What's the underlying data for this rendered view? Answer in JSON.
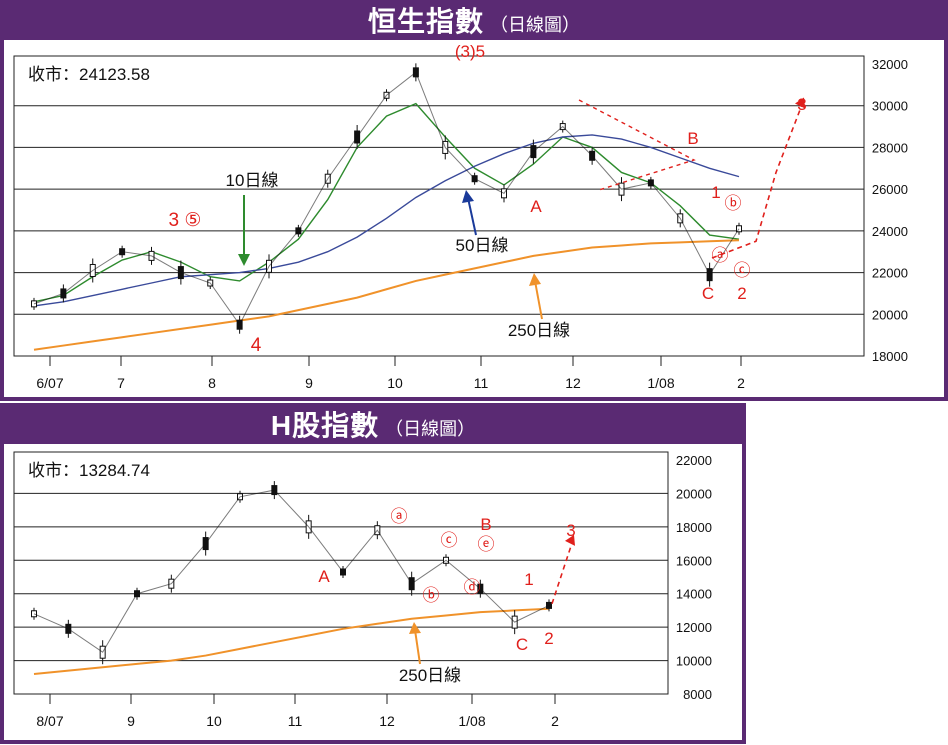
{
  "chart_data": [
    {
      "type": "line",
      "title": "恒生指數",
      "subtitle": "（日線圖）",
      "close_label": "收市：24123.58",
      "x_ticks": [
        "6/07",
        "7",
        "8",
        "9",
        "10",
        "11",
        "12",
        "1/08",
        "2"
      ],
      "y_ticks": [
        "32000",
        "30000",
        "28000",
        "26000",
        "24000",
        "22000",
        "20000",
        "18000"
      ],
      "ylim": [
        18000,
        32000
      ],
      "series": [
        {
          "name": "10日線",
          "color": "#2e8b2e",
          "values": [
            20600,
            20900,
            21800,
            22600,
            23000,
            22500,
            21800,
            21600,
            22500,
            23600,
            25500,
            28000,
            29500,
            30100,
            28500,
            27000,
            26200,
            27200,
            28500,
            28000,
            26800,
            26300,
            25200,
            23800,
            23600
          ]
        },
        {
          "name": "50日線",
          "color": "#3a4a9a",
          "values": [
            20400,
            20600,
            20900,
            21200,
            21500,
            21800,
            21900,
            22000,
            22200,
            22500,
            23000,
            23700,
            24600,
            25600,
            26400,
            27100,
            27700,
            28200,
            28500,
            28600,
            28400,
            28000,
            27500,
            27000,
            26600
          ]
        },
        {
          "name": "250日線",
          "color": "#f0922a",
          "values": [
            18300,
            18500,
            18700,
            18900,
            19100,
            19300,
            19500,
            19700,
            19900,
            20200,
            20500,
            20800,
            21200,
            21600,
            21900,
            22200,
            22500,
            22800,
            23000,
            23200,
            23300,
            23400,
            23450,
            23500,
            23550
          ]
        },
        {
          "name": "price",
          "color": "#111111",
          "values": [
            20500,
            21000,
            22100,
            23000,
            22800,
            22000,
            21500,
            19500,
            22300,
            24000,
            26500,
            28500,
            30500,
            31600,
            28000,
            26500,
            25800,
            27800,
            29000,
            27600,
            26000,
            26300,
            24600,
            21900,
            24100
          ]
        }
      ],
      "projection": [
        22700,
        23500,
        26800,
        30300
      ],
      "annotations": [
        "(3)5",
        "3 ⑤",
        "10日線",
        "4",
        "50日線",
        "A",
        "250日線",
        "B",
        "1",
        "ⓑ",
        "ⓐ",
        "ⓒ",
        "C",
        "2",
        "3"
      ]
    },
    {
      "type": "line",
      "title": "H股指數",
      "subtitle": "（日線圖）",
      "close_label": "收市：13284.74",
      "x_ticks": [
        "8/07",
        "9",
        "10",
        "11",
        "12",
        "1/08",
        "2"
      ],
      "y_ticks": [
        "22000",
        "20000",
        "18000",
        "16000",
        "14000",
        "12000",
        "10000",
        "8000"
      ],
      "ylim": [
        8000,
        22000
      ],
      "series": [
        {
          "name": "250日線",
          "color": "#f0922a",
          "values": [
            9200,
            9400,
            9600,
            9800,
            10000,
            10300,
            10700,
            11100,
            11500,
            11900,
            12200,
            12500,
            12700,
            12900,
            13000,
            13100
          ]
        },
        {
          "name": "price",
          "color": "#111111",
          "values": [
            12800,
            11900,
            10500,
            14000,
            14600,
            17000,
            19800,
            20200,
            18000,
            15300,
            17800,
            14600,
            16000,
            14300,
            12300,
            13300
          ]
        }
      ],
      "projection": [
        13400,
        17400
      ],
      "annotations": [
        "ⓐ",
        "A",
        "ⓒ",
        "B",
        "ⓔ",
        "ⓑ",
        "ⓓ",
        "1",
        "3",
        "C",
        "2",
        "250日線"
      ]
    }
  ]
}
